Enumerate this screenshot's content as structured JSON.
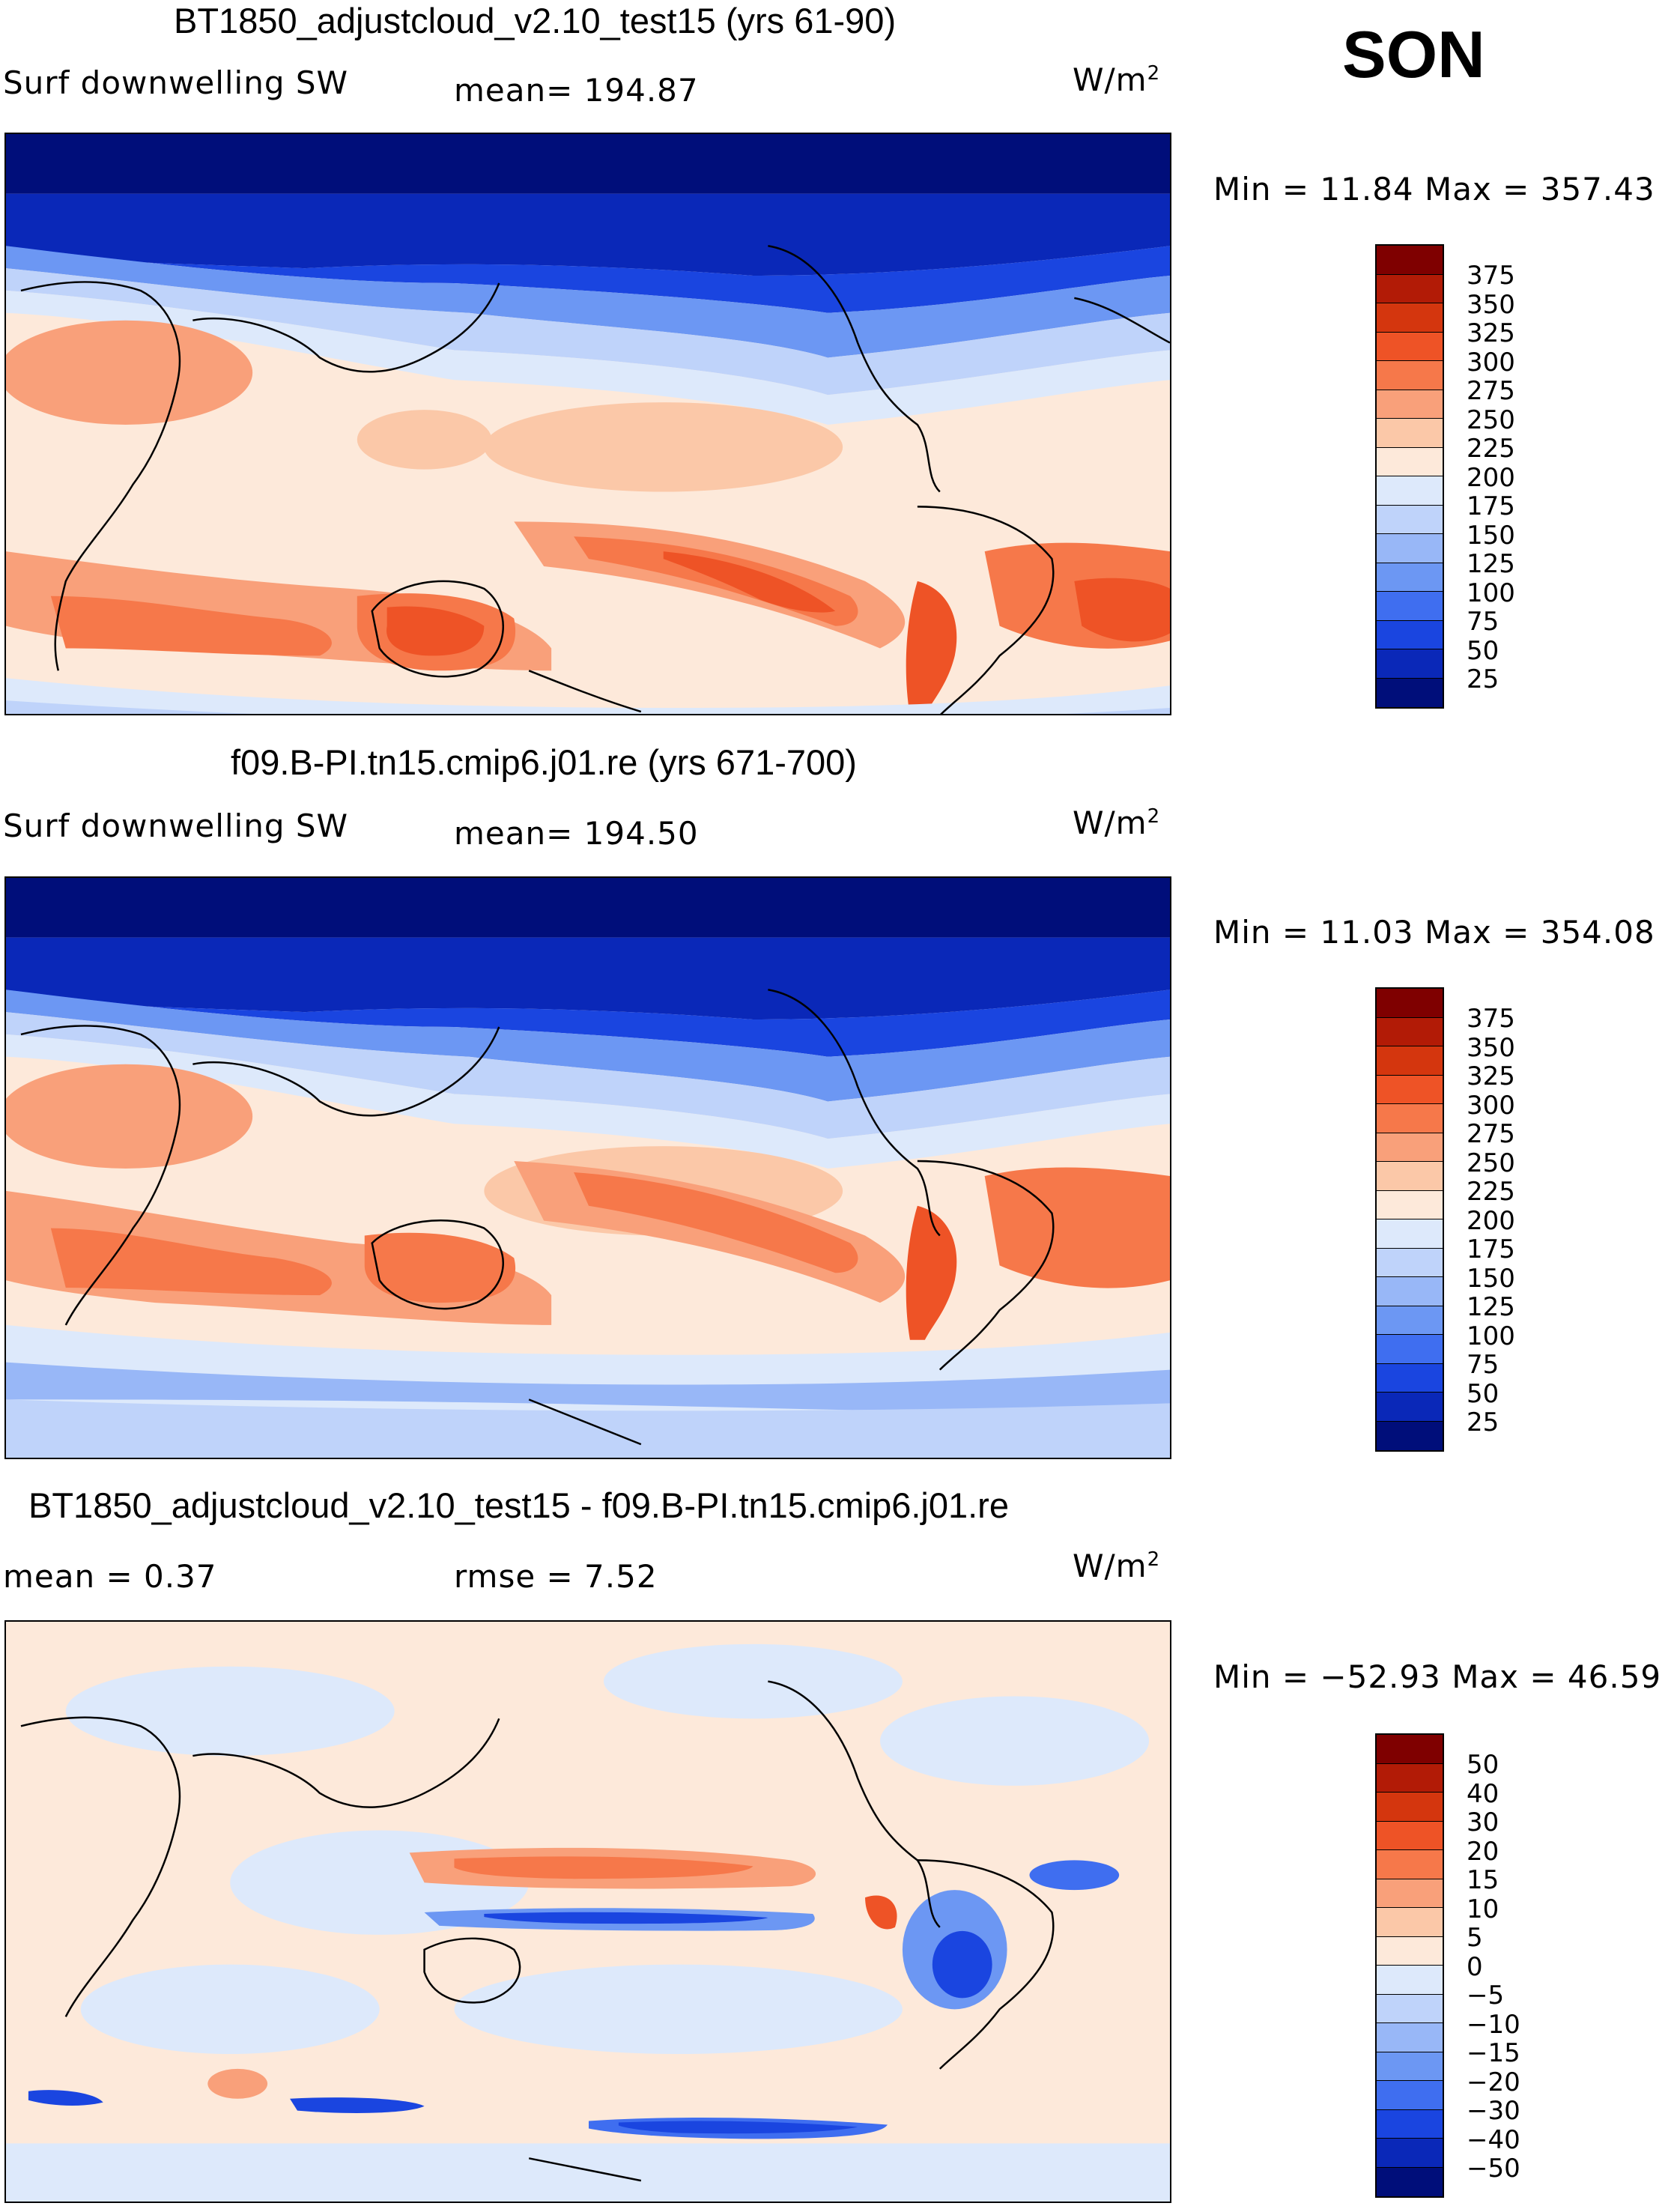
{
  "season": "SON",
  "panels": [
    {
      "title": "BT1850_adjustcloud_v2.10_test15 (yrs 61-90)",
      "left_label": "Surf  downwelling  SW",
      "center_label": "mean=  194.87",
      "units_base": "W/m",
      "units_exp": "2",
      "minmax": "Min  =    11.84  Max  =  357.43",
      "colorbar_ticks": [
        "375",
        "350",
        "325",
        "300",
        "275",
        "250",
        "225",
        "200",
        "175",
        "150",
        "125",
        "100",
        "75",
        "50",
        "25"
      ]
    },
    {
      "title": "f09.B-PI.tn15.cmip6.j01.re (yrs 671-700)",
      "left_label": "Surf  downwelling  SW",
      "center_label": "mean=  194.50",
      "units_base": "W/m",
      "units_exp": "2",
      "minmax": "Min  =    11.03  Max  =  354.08",
      "colorbar_ticks": [
        "375",
        "350",
        "325",
        "300",
        "275",
        "250",
        "225",
        "200",
        "175",
        "150",
        "125",
        "100",
        "75",
        "50",
        "25"
      ]
    },
    {
      "title": "BT1850_adjustcloud_v2.10_test15 - f09.B-PI.tn15.cmip6.j01.re",
      "left_label": "mean  =     0.37",
      "center_label": "rmse  =     7.52",
      "units_base": "W/m",
      "units_exp": "2",
      "minmax": "Min  = −52.93  Max  =    46.59",
      "colorbar_ticks": [
        "50",
        "40",
        "30",
        "20",
        "15",
        "10",
        "5",
        "0",
        "−5",
        "−10",
        "−15",
        "−20",
        "−30",
        "−40",
        "−50"
      ]
    }
  ],
  "colors": {
    "abs_scale": [
      "#7f0000",
      "#b21b06",
      "#d4360e",
      "#ee5326",
      "#f6784a",
      "#f9a07a",
      "#fbc8a8",
      "#fde9da",
      "#dde9fb",
      "#bfd3fa",
      "#98b7f7",
      "#6c97f3",
      "#3f6ef0",
      "#1a45e0",
      "#0a28b8",
      "#000e7a"
    ],
    "diff_scale": [
      "#7f0000",
      "#b21b06",
      "#d4360e",
      "#ee5326",
      "#f6784a",
      "#f9a07a",
      "#fbc8a8",
      "#fde9da",
      "#dde9fb",
      "#bfd3fa",
      "#98b7f7",
      "#6c97f3",
      "#3f6ef0",
      "#1a45e0",
      "#0a28b8",
      "#000e7a"
    ]
  }
}
